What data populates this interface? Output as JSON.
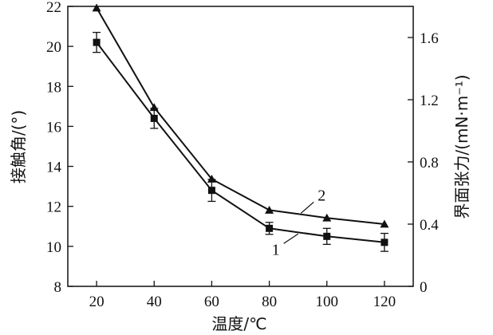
{
  "chart_data": {
    "type": "line",
    "x": [
      20,
      40,
      60,
      80,
      100,
      120
    ],
    "xlim": [
      10,
      130
    ],
    "x_ticks": [
      "20",
      "40",
      "60",
      "80",
      "100",
      "120"
    ],
    "xlabel": "温度/℃",
    "ylabel_left": "接触角/(°)",
    "ylim_left": [
      8,
      22
    ],
    "y_ticks_left": [
      "8",
      "10",
      "12",
      "14",
      "16",
      "18",
      "20",
      "22"
    ],
    "ylabel_right": "界面张力/(mN·m⁻¹)",
    "ylim_right": [
      0,
      1.8
    ],
    "y_ticks_right": [
      "0",
      "0.4",
      "0.8",
      "1.2",
      "1.6"
    ],
    "grid": false,
    "series": [
      {
        "name": "1",
        "marker": "square",
        "axis": "left",
        "values": [
          20.2,
          16.4,
          12.8,
          10.9,
          10.5,
          10.2
        ],
        "errors": [
          0.5,
          0.5,
          0.55,
          0.3,
          0.4,
          0.45
        ]
      },
      {
        "name": "2",
        "marker": "triangle",
        "axis": "right",
        "values": [
          1.79,
          1.15,
          0.69,
          0.49,
          0.44,
          0.4
        ]
      }
    ],
    "colors": {
      "line": "#111111",
      "background": "#ffffff"
    }
  }
}
